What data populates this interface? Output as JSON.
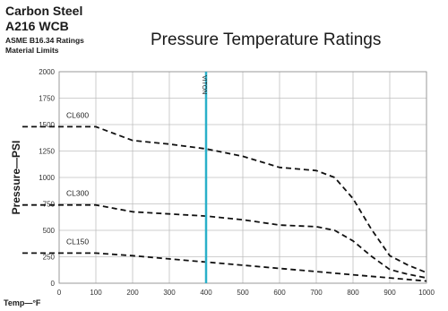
{
  "header": {
    "line1": "Carbon Steel",
    "line2": "A216 WCB",
    "line3": "ASME B16.34 Ratings",
    "line4": "Material Limits"
  },
  "chart_data": {
    "type": "line",
    "title": "Pressure Temperature Ratings",
    "xlabel": "Temp—°F",
    "ylabel": "Pressure—PSI",
    "xlim": [
      0,
      1000
    ],
    "ylim": [
      0,
      2000
    ],
    "xticks": [
      0,
      100,
      200,
      300,
      400,
      500,
      600,
      700,
      800,
      900,
      1000
    ],
    "yticks": [
      0,
      250,
      500,
      750,
      1000,
      1250,
      1500,
      1750,
      2000
    ],
    "grid": true,
    "series": [
      {
        "name": "CL600",
        "style": "dashed",
        "color": "#111111",
        "points": [
          [
            -100,
            1480
          ],
          [
            100,
            1480
          ],
          [
            200,
            1350
          ],
          [
            300,
            1315
          ],
          [
            400,
            1270
          ],
          [
            500,
            1200
          ],
          [
            600,
            1095
          ],
          [
            700,
            1065
          ],
          [
            750,
            1000
          ],
          [
            800,
            800
          ],
          [
            850,
            510
          ],
          [
            900,
            260
          ],
          [
            950,
            170
          ],
          [
            1000,
            100
          ]
        ]
      },
      {
        "name": "CL300",
        "style": "dashed",
        "color": "#111111",
        "points": [
          [
            -100,
            740
          ],
          [
            100,
            740
          ],
          [
            200,
            675
          ],
          [
            300,
            655
          ],
          [
            400,
            635
          ],
          [
            500,
            600
          ],
          [
            600,
            550
          ],
          [
            700,
            535
          ],
          [
            750,
            500
          ],
          [
            800,
            400
          ],
          [
            850,
            255
          ],
          [
            900,
            130
          ],
          [
            950,
            85
          ],
          [
            1000,
            50
          ]
        ]
      },
      {
        "name": "CL150",
        "style": "dashed",
        "color": "#111111",
        "points": [
          [
            -100,
            285
          ],
          [
            100,
            285
          ],
          [
            200,
            260
          ],
          [
            300,
            230
          ],
          [
            400,
            200
          ],
          [
            500,
            170
          ],
          [
            600,
            140
          ],
          [
            700,
            110
          ],
          [
            800,
            80
          ],
          [
            900,
            50
          ],
          [
            1000,
            20
          ]
        ]
      }
    ],
    "markers": [
      {
        "label": "VITON",
        "x": 400,
        "color": "#2ab0c9"
      }
    ]
  }
}
